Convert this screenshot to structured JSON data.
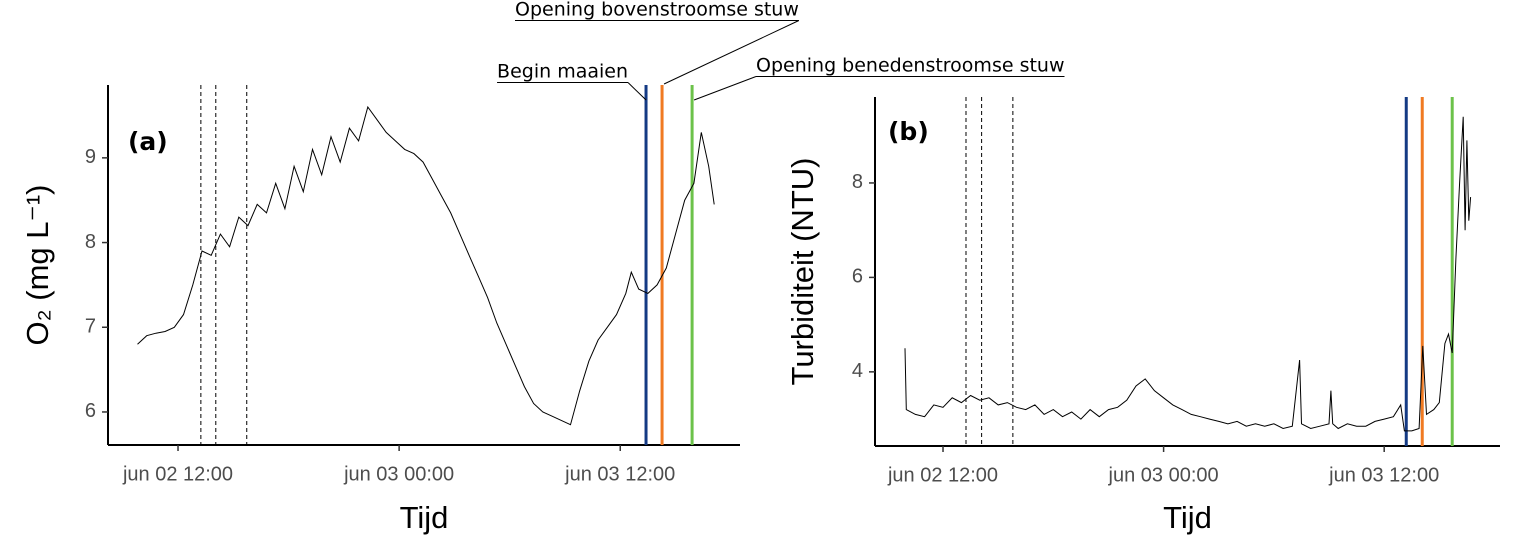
{
  "chart_data": [
    {
      "type": "line",
      "panel": "(a)",
      "xlabel": "Tijd",
      "ylabel": "O₂ (mg L⁻¹)",
      "color": "#000000",
      "xlim": [
        8.2,
        42.5
      ],
      "ylim": [
        5.61,
        9.86
      ],
      "xticks": [
        {
          "value": 12,
          "label": "jun 02 12:00"
        },
        {
          "value": 24,
          "label": "jun 03 00:00"
        },
        {
          "value": 36,
          "label": "jun 03 12:00"
        }
      ],
      "yticks": [
        6,
        7,
        8,
        9
      ],
      "x": [
        9.8,
        10.3,
        10.8,
        11.3,
        11.8,
        12.3,
        12.8,
        13.3,
        13.8,
        14.3,
        14.8,
        15.3,
        15.8,
        16.3,
        16.8,
        17.3,
        17.8,
        18.3,
        18.8,
        19.3,
        19.8,
        20.3,
        20.8,
        21.3,
        21.8,
        22.3,
        22.8,
        23.3,
        23.8,
        24.3,
        24.8,
        25.3,
        25.8,
        26.3,
        26.8,
        27.3,
        27.8,
        28.3,
        28.8,
        29.3,
        29.8,
        30.3,
        30.8,
        31.3,
        31.8,
        32.3,
        32.8,
        33.3,
        33.8,
        34.3,
        34.8,
        35.3,
        35.8,
        36.3,
        36.6,
        37.0,
        37.5,
        38.0,
        38.5,
        39.0,
        39.5,
        40.0,
        40.4,
        40.8,
        41.1
      ],
      "values": [
        6.8,
        6.9,
        6.93,
        6.95,
        7.0,
        7.15,
        7.5,
        7.9,
        7.85,
        8.1,
        7.95,
        8.3,
        8.2,
        8.45,
        8.35,
        8.7,
        8.4,
        8.9,
        8.6,
        9.1,
        8.8,
        9.25,
        8.95,
        9.35,
        9.2,
        9.6,
        9.45,
        9.3,
        9.2,
        9.1,
        9.05,
        8.95,
        8.75,
        8.55,
        8.35,
        8.1,
        7.85,
        7.6,
        7.35,
        7.05,
        6.8,
        6.55,
        6.3,
        6.1,
        6.0,
        5.95,
        5.9,
        5.85,
        6.25,
        6.6,
        6.85,
        7.0,
        7.15,
        7.4,
        7.65,
        7.45,
        7.4,
        7.5,
        7.7,
        8.1,
        8.5,
        8.7,
        9.3,
        8.9,
        8.45
      ],
      "vlines": [
        {
          "x": 13.24,
          "color": "#000000",
          "dashed": true
        },
        {
          "x": 14.05,
          "color": "#000000",
          "dashed": true
        },
        {
          "x": 15.73,
          "color": "#000000",
          "dashed": true
        },
        {
          "x": 37.4,
          "color": "#143a84",
          "dashed": false
        },
        {
          "x": 38.27,
          "color": "#f07a22",
          "dashed": false
        },
        {
          "x": 39.9,
          "color": "#6cc24a",
          "dashed": false
        }
      ],
      "annotations": [
        "Begin maaien",
        "Opening bovenstroomse stuw",
        "Opening benedenstroomse stuw"
      ]
    },
    {
      "type": "line",
      "panel": "(b)",
      "xlabel": "Tijd",
      "ylabel": "Turbiditeit (NTU)",
      "color": "#000000",
      "xlim": [
        8.3,
        42.3
      ],
      "ylim": [
        2.43,
        9.82
      ],
      "xticks": [
        {
          "value": 12,
          "label": "jun 02 12:00"
        },
        {
          "value": 24,
          "label": "jun 03 00:00"
        },
        {
          "value": 36,
          "label": "jun 03 12:00"
        }
      ],
      "yticks": [
        4,
        6,
        8
      ],
      "x": [
        9.93,
        10.0,
        10.5,
        11,
        11.5,
        12,
        12.5,
        13,
        13.5,
        14,
        14.5,
        15,
        15.5,
        16,
        16.5,
        17,
        17.5,
        18,
        18.5,
        19,
        19.5,
        20,
        20.5,
        21,
        21.5,
        22,
        22.5,
        23,
        23.5,
        24,
        24.5,
        25,
        25.5,
        26,
        26.5,
        27,
        27.5,
        28,
        28.5,
        29,
        29.5,
        30,
        30.5,
        31.0,
        31.4,
        31.5,
        32,
        32.5,
        33,
        33.1,
        33.2,
        33.5,
        34,
        34.5,
        35,
        35.5,
        36,
        36.5,
        36.9,
        37.1,
        37.5,
        37.9,
        38.1,
        38.3,
        38.7,
        39.0,
        39.3,
        39.5,
        39.7,
        39.9,
        40.1,
        40.3,
        40.4,
        40.5,
        40.6,
        40.7
      ],
      "values": [
        4.5,
        3.2,
        3.1,
        3.05,
        3.3,
        3.25,
        3.45,
        3.35,
        3.5,
        3.4,
        3.45,
        3.3,
        3.35,
        3.25,
        3.2,
        3.3,
        3.1,
        3.2,
        3.05,
        3.15,
        3.0,
        3.2,
        3.05,
        3.2,
        3.25,
        3.4,
        3.7,
        3.85,
        3.6,
        3.45,
        3.3,
        3.2,
        3.1,
        3.05,
        3.0,
        2.95,
        2.9,
        2.95,
        2.85,
        2.9,
        2.85,
        2.9,
        2.8,
        2.85,
        4.25,
        2.9,
        2.8,
        2.85,
        2.9,
        3.6,
        2.9,
        2.8,
        2.9,
        2.85,
        2.85,
        2.95,
        3.0,
        3.05,
        3.3,
        2.75,
        2.75,
        2.8,
        4.55,
        3.1,
        3.2,
        3.35,
        4.6,
        4.8,
        4.4,
        6.4,
        8.0,
        9.4,
        7.0,
        8.9,
        7.2,
        7.7
      ],
      "vlines": [
        {
          "x": 13.25,
          "color": "#000000",
          "dashed": true
        },
        {
          "x": 14.1,
          "color": "#000000",
          "dashed": true
        },
        {
          "x": 15.8,
          "color": "#000000",
          "dashed": true
        },
        {
          "x": 37.2,
          "color": "#143a84",
          "dashed": false
        },
        {
          "x": 38.07,
          "color": "#f07a22",
          "dashed": false
        },
        {
          "x": 39.7,
          "color": "#6cc24a",
          "dashed": false
        }
      ]
    }
  ]
}
